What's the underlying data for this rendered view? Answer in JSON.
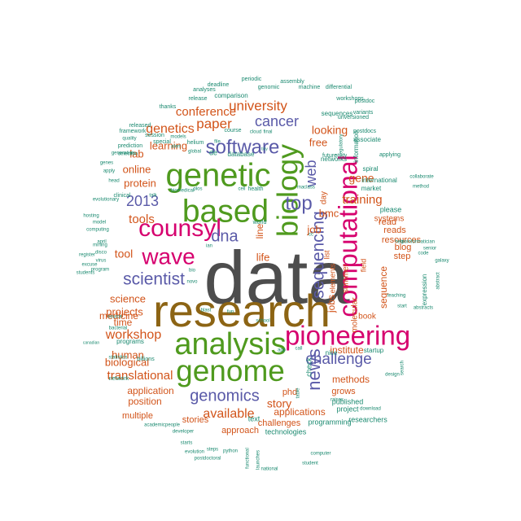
{
  "colors": {
    "dark_gray": "#4d4d4d",
    "brown": "#8c6414",
    "green": "#4f9a1e",
    "magenta": "#d6006e",
    "blue": "#5a5aa8",
    "orange": "#d2541a",
    "teal": "#1b8a70",
    "background": "#ffffff"
  },
  "words": [
    {
      "text": "data",
      "color": "dark_gray"
    },
    {
      "text": "research",
      "color": "brown"
    },
    {
      "text": "analysis",
      "color": "green"
    },
    {
      "text": "genetic",
      "color": "green"
    },
    {
      "text": "genome",
      "color": "green"
    },
    {
      "text": "based",
      "color": "green"
    },
    {
      "text": "biology",
      "color": "green"
    },
    {
      "text": "pioneering",
      "color": "magenta"
    },
    {
      "text": "computational",
      "color": "magenta"
    },
    {
      "text": "counsyl",
      "color": "magenta"
    },
    {
      "text": "wave",
      "color": "magenta"
    },
    {
      "text": "top",
      "color": "blue"
    },
    {
      "text": "software",
      "color": "blue"
    },
    {
      "text": "sequencing",
      "color": "blue"
    },
    {
      "text": "news",
      "color": "blue"
    },
    {
      "text": "scientist",
      "color": "blue"
    },
    {
      "text": "genomics",
      "color": "blue"
    },
    {
      "text": "dna",
      "color": "blue"
    },
    {
      "text": "cancer",
      "color": "blue"
    },
    {
      "text": "2013",
      "color": "blue"
    },
    {
      "text": "web",
      "color": "blue"
    },
    {
      "text": "challenge",
      "color": "blue"
    },
    {
      "text": "university",
      "color": "orange"
    },
    {
      "text": "paper",
      "color": "orange"
    },
    {
      "text": "genetics",
      "color": "orange"
    },
    {
      "text": "conference",
      "color": "orange"
    },
    {
      "text": "tools",
      "color": "orange"
    },
    {
      "text": "available",
      "color": "orange"
    },
    {
      "text": "workshop",
      "color": "orange"
    },
    {
      "text": "translational",
      "color": "orange"
    },
    {
      "text": "training",
      "color": "orange"
    },
    {
      "text": "gene",
      "color": "orange"
    },
    {
      "text": "looking",
      "color": "orange"
    },
    {
      "text": "story",
      "color": "orange"
    },
    {
      "text": "human",
      "color": "orange"
    },
    {
      "text": "biological",
      "color": "orange"
    },
    {
      "text": "tool",
      "color": "orange"
    },
    {
      "text": "life",
      "color": "orange"
    },
    {
      "text": "online",
      "color": "orange"
    },
    {
      "text": "protein",
      "color": "orange"
    },
    {
      "text": "lab",
      "color": "orange"
    },
    {
      "text": "learning",
      "color": "orange"
    },
    {
      "text": "science",
      "color": "orange"
    },
    {
      "text": "projects",
      "color": "orange"
    },
    {
      "text": "medicine",
      "color": "orange"
    },
    {
      "text": "time",
      "color": "orange"
    },
    {
      "text": "job",
      "color": "orange"
    },
    {
      "text": "free",
      "color": "orange"
    },
    {
      "text": "bmc",
      "color": "orange"
    },
    {
      "text": "line",
      "color": "orange"
    },
    {
      "text": "institute",
      "color": "orange"
    },
    {
      "text": "methods",
      "color": "orange"
    },
    {
      "text": "application",
      "color": "orange"
    },
    {
      "text": "position",
      "color": "orange"
    },
    {
      "text": "applications",
      "color": "orange"
    },
    {
      "text": "stories",
      "color": "orange"
    },
    {
      "text": "multiple",
      "color": "orange"
    },
    {
      "text": "approach",
      "color": "orange"
    },
    {
      "text": "challenges",
      "color": "orange"
    },
    {
      "text": "phd",
      "color": "orange"
    },
    {
      "text": "grows",
      "color": "orange"
    },
    {
      "text": "jobs",
      "color": "orange"
    },
    {
      "text": "sequence",
      "color": "orange"
    },
    {
      "text": "read",
      "color": "orange"
    },
    {
      "text": "blog",
      "color": "orange"
    },
    {
      "text": "step",
      "color": "orange"
    },
    {
      "text": "reads",
      "color": "orange"
    },
    {
      "text": "resources",
      "color": "orange"
    },
    {
      "text": "systems",
      "color": "orange"
    },
    {
      "text": "summer",
      "color": "orange"
    },
    {
      "text": "molecular",
      "color": "orange"
    },
    {
      "text": "day",
      "color": "orange"
    },
    {
      "text": "list",
      "color": "orange"
    },
    {
      "text": "elements",
      "color": "orange"
    },
    {
      "text": "book",
      "color": "orange"
    },
    {
      "text": "field",
      "color": "orange"
    },
    {
      "text": "published",
      "color": "teal"
    },
    {
      "text": "project",
      "color": "teal"
    },
    {
      "text": "researchers",
      "color": "teal"
    },
    {
      "text": "technologies",
      "color": "teal"
    },
    {
      "text": "programming",
      "color": "teal"
    },
    {
      "text": "text",
      "color": "teal"
    },
    {
      "text": "check",
      "color": "teal"
    },
    {
      "text": "nice",
      "color": "teal"
    },
    {
      "text": "startup",
      "color": "teal"
    },
    {
      "text": "please",
      "color": "teal"
    },
    {
      "text": "expression",
      "color": "teal"
    },
    {
      "text": "international",
      "color": "teal"
    },
    {
      "text": "spiral",
      "color": "teal"
    },
    {
      "text": "market",
      "color": "teal"
    },
    {
      "text": "associate",
      "color": "teal"
    },
    {
      "text": "information",
      "color": "teal"
    },
    {
      "text": "networks",
      "color": "teal"
    },
    {
      "text": "sequences",
      "color": "teal"
    },
    {
      "text": "comparison",
      "color": "teal"
    },
    {
      "text": "release",
      "color": "teal"
    },
    {
      "text": "analyses",
      "color": "teal"
    },
    {
      "text": "deadline",
      "color": "teal"
    },
    {
      "text": "genomic",
      "color": "teal"
    },
    {
      "text": "periodic",
      "color": "teal"
    },
    {
      "text": "assembly",
      "color": "teal"
    },
    {
      "text": "machine",
      "color": "teal"
    },
    {
      "text": "differential",
      "color": "teal"
    },
    {
      "text": "postdoc",
      "color": "teal"
    },
    {
      "text": "workshops",
      "color": "teal"
    },
    {
      "text": "thanks",
      "color": "teal"
    },
    {
      "text": "released",
      "color": "teal"
    },
    {
      "text": "framework",
      "color": "teal"
    },
    {
      "text": "session",
      "color": "teal"
    },
    {
      "text": "helium",
      "color": "teal"
    },
    {
      "text": "course",
      "color": "teal"
    },
    {
      "text": "cloud",
      "color": "teal"
    },
    {
      "text": "final",
      "color": "teal"
    },
    {
      "text": "unversioned",
      "color": "teal"
    },
    {
      "text": "postdocs",
      "color": "teal"
    },
    {
      "text": "quality",
      "color": "teal"
    },
    {
      "text": "special",
      "color": "teal"
    },
    {
      "text": "prediction",
      "color": "teal"
    },
    {
      "text": "models",
      "color": "teal"
    },
    {
      "text": "detection",
      "color": "teal"
    },
    {
      "text": "alert",
      "color": "teal"
    },
    {
      "text": "generation",
      "color": "teal"
    },
    {
      "text": "global",
      "color": "teal"
    },
    {
      "text": "file",
      "color": "teal"
    },
    {
      "text": "de",
      "color": "teal"
    },
    {
      "text": "database",
      "color": "teal"
    },
    {
      "text": "future",
      "color": "teal"
    },
    {
      "text": "study",
      "color": "teal"
    },
    {
      "text": "genes",
      "color": "teal"
    },
    {
      "text": "apply",
      "color": "teal"
    },
    {
      "text": "head",
      "color": "teal"
    },
    {
      "text": "clinical",
      "color": "teal"
    },
    {
      "text": "evolutionary",
      "color": "teal"
    },
    {
      "text": "plos",
      "color": "teal"
    },
    {
      "text": "biomedical",
      "color": "teal"
    },
    {
      "text": "cell",
      "color": "teal"
    },
    {
      "text": "health",
      "color": "teal"
    },
    {
      "text": "rna",
      "color": "teal"
    },
    {
      "text": "class",
      "color": "teal"
    },
    {
      "text": "talk",
      "color": "teal"
    },
    {
      "text": "collaborate",
      "color": "teal"
    },
    {
      "text": "method",
      "color": "teal"
    },
    {
      "text": "bioinformatician",
      "color": "teal"
    },
    {
      "text": "help",
      "color": "teal"
    },
    {
      "text": "hosting",
      "color": "teal"
    },
    {
      "text": "computing",
      "color": "teal"
    },
    {
      "text": "model",
      "color": "teal"
    },
    {
      "text": "world",
      "color": "teal"
    },
    {
      "text": "cc",
      "color": "teal"
    },
    {
      "text": "mining",
      "color": "teal"
    },
    {
      "text": "register",
      "color": "teal"
    },
    {
      "text": "disco",
      "color": "teal"
    },
    {
      "text": "excuse",
      "color": "teal"
    },
    {
      "text": "students",
      "color": "teal"
    },
    {
      "text": "program",
      "color": "teal"
    },
    {
      "text": "bio",
      "color": "teal"
    },
    {
      "text": "novo",
      "color": "teal"
    },
    {
      "text": "senior",
      "color": "teal"
    },
    {
      "text": "galaxy",
      "color": "teal"
    },
    {
      "text": "code",
      "color": "teal"
    },
    {
      "text": "abstract",
      "color": "teal"
    },
    {
      "text": "abstracts",
      "color": "teal"
    },
    {
      "text": "teaching",
      "color": "teal"
    },
    {
      "text": "start",
      "color": "teal"
    },
    {
      "text": "source",
      "color": "teal"
    },
    {
      "text": "bacterial",
      "color": "teal"
    },
    {
      "text": "blast",
      "color": "teal"
    },
    {
      "text": "fun",
      "color": "teal"
    },
    {
      "text": "school",
      "color": "teal"
    },
    {
      "text": "app",
      "color": "teal"
    },
    {
      "text": "call",
      "color": "teal"
    },
    {
      "text": "canadian",
      "color": "teal"
    },
    {
      "text": "programs",
      "color": "teal"
    },
    {
      "text": "statistics",
      "color": "teal"
    },
    {
      "text": "billions",
      "color": "teal"
    },
    {
      "text": "network",
      "color": "teal"
    },
    {
      "text": "design",
      "color": "teal"
    },
    {
      "text": "search",
      "color": "teal"
    },
    {
      "text": "table",
      "color": "teal"
    },
    {
      "text": "raises",
      "color": "teal"
    },
    {
      "text": "download",
      "color": "teal"
    },
    {
      "text": "academic",
      "color": "teal"
    },
    {
      "text": "people",
      "color": "teal"
    },
    {
      "text": "developer",
      "color": "teal"
    },
    {
      "text": "starts",
      "color": "teal"
    },
    {
      "text": "steps",
      "color": "teal"
    },
    {
      "text": "python",
      "color": "teal"
    },
    {
      "text": "evolution",
      "color": "teal"
    },
    {
      "text": "postdoctoral",
      "color": "teal"
    },
    {
      "text": "functional",
      "color": "teal"
    },
    {
      "text": "launches",
      "color": "teal"
    },
    {
      "text": "computer",
      "color": "teal"
    },
    {
      "text": "national",
      "color": "teal"
    },
    {
      "text": "student",
      "color": "teal"
    },
    {
      "text": "applying",
      "color": "teal"
    },
    {
      "text": "variants",
      "color": "teal"
    },
    {
      "text": "regulatory",
      "color": "teal"
    },
    {
      "text": "april",
      "color": "teal"
    },
    {
      "text": "virus",
      "color": "teal"
    },
    {
      "text": "tiny",
      "color": "teal"
    },
    {
      "text": "ian",
      "color": "teal"
    }
  ]
}
